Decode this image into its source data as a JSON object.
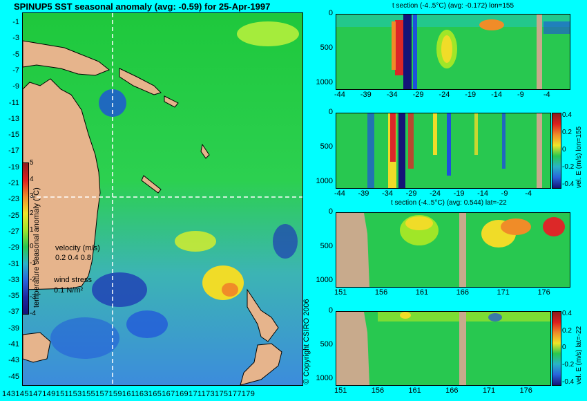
{
  "map": {
    "title": "SPINUP5 SST seasonal anomaly (avg: -0.59) for 25-Apr-1997",
    "lat_ticks": [
      "-1",
      "-3",
      "-5",
      "-7",
      "-9",
      "-11",
      "-13",
      "-15",
      "-17",
      "-19",
      "-21",
      "-23",
      "-25",
      "-27",
      "-29",
      "-31",
      "-33",
      "-35",
      "-37",
      "-39",
      "-41",
      "-43",
      "-45"
    ],
    "lon_ticks_text": "143145147149151153155157159161163165167169171173175177179",
    "colorbar_ticks": [
      "5",
      "4",
      "3",
      "2",
      "1",
      "0",
      "-1",
      "-2",
      "-3",
      "-4"
    ],
    "colorbar_label": "temperature seasonal anomaly (°C)",
    "velocity_label": "velocity (m/s)",
    "velocity_scale": "0.2 0.4 0.8",
    "wind_label": "wind stress",
    "wind_scale": "0.1 N/m²",
    "copyright": "© Copyright CSIRO 2006"
  },
  "panels": [
    {
      "title": "t section (-4..5°C) (avg: -0.172) lon=155",
      "y_ticks": [
        "0",
        "500",
        "1000"
      ],
      "x_ticks": [
        "-44",
        "-39",
        "-34",
        "-29",
        "-24",
        "-19",
        "-14",
        "-9",
        "-4"
      ],
      "side_label": ""
    },
    {
      "title": "",
      "y_ticks": [
        "0",
        "500",
        "1000"
      ],
      "x_ticks": [
        "-44",
        "-39",
        "-34",
        "-29",
        "-24",
        "-19",
        "-14",
        "-9",
        "-4"
      ],
      "side_label": "vel. E (m/s) lon=155",
      "cbar_ticks": [
        "0.4",
        "0.2",
        "0",
        "-0.2",
        "-0.4"
      ]
    },
    {
      "title": "t section (-4..5°C) (avg: 0.544) lat=-22",
      "y_ticks": [
        "0",
        "500",
        "1000"
      ],
      "x_ticks": [
        "151",
        "156",
        "161",
        "166",
        "171",
        "176"
      ],
      "side_label": ""
    },
    {
      "title": "",
      "y_ticks": [
        "0",
        "500",
        "1000"
      ],
      "x_ticks": [
        "151",
        "156",
        "161",
        "166",
        "171",
        "176"
      ],
      "side_label": "vel. E (m/s) lat=-22",
      "cbar_ticks": [
        "0.4",
        "0.2",
        "0",
        "-0.2",
        "-0.4"
      ]
    }
  ],
  "chart_data": {
    "type": "heatmap",
    "colors": {
      "land": "#e6b48c",
      "section_land": "#c8aa8c",
      "background": "#00ffff",
      "crosshair": "#ffffff"
    },
    "colorbar_range": [
      -4,
      5
    ],
    "section_depth_range": [
      0,
      1050
    ],
    "crosshair": {
      "lon": 155,
      "lat": -22
    }
  }
}
